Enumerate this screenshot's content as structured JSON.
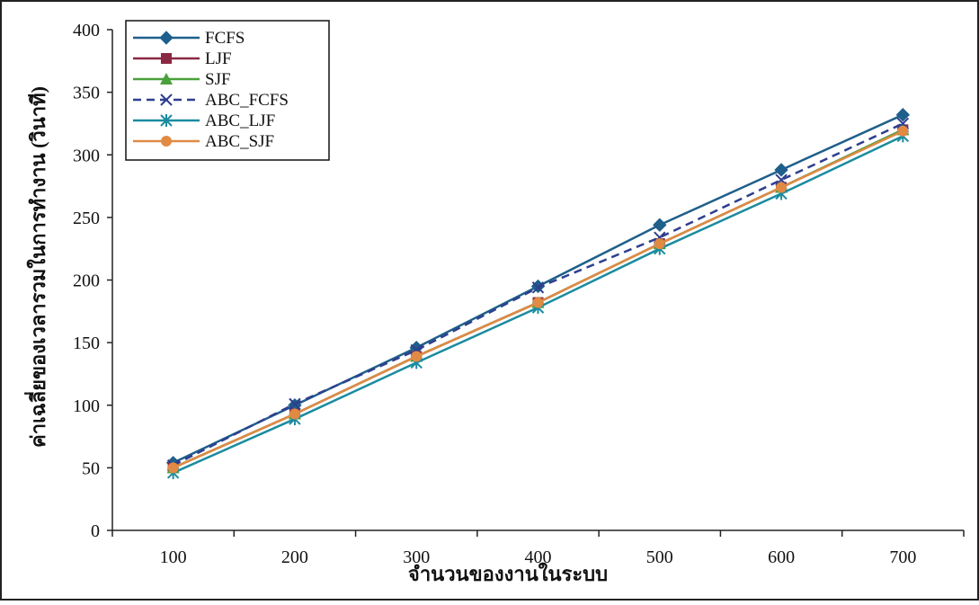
{
  "chart_data": {
    "type": "line",
    "title": "",
    "xlabel": "จำนวนของงานในระบบ",
    "ylabel": "ค่าเฉลี่ยของเวลารวมในการทำงาน (วินาที)",
    "x": [
      100,
      200,
      300,
      400,
      500,
      600,
      700
    ],
    "xtick_labels": [
      "100",
      "200",
      "300",
      "400",
      "500",
      "600",
      "700"
    ],
    "ylim": [
      0,
      400
    ],
    "yticks": [
      0,
      50,
      100,
      150,
      200,
      250,
      300,
      350,
      400
    ],
    "ytick_labels": [
      "0",
      "50",
      "100",
      "150",
      "200",
      "250",
      "300",
      "350",
      "400"
    ],
    "grid": false,
    "legend_position": "top-left",
    "series": [
      {
        "name": "FCFS",
        "values": [
          54,
          100,
          146,
          195,
          244,
          288,
          332
        ],
        "color": "#1f5f8b",
        "marker": "diamond",
        "dash": false
      },
      {
        "name": "LJF",
        "values": [
          50,
          93,
          139,
          182,
          229,
          274,
          320
        ],
        "color": "#8b2942",
        "marker": "square",
        "dash": false
      },
      {
        "name": "SJF",
        "values": [
          50,
          93,
          139,
          182,
          229,
          274,
          320
        ],
        "color": "#4aa03a",
        "marker": "triangle",
        "dash": false
      },
      {
        "name": "ABC_FCFS",
        "values": [
          52,
          101,
          144,
          194,
          234,
          280,
          325
        ],
        "color": "#2e3f8f",
        "marker": "x",
        "dash": true
      },
      {
        "name": "ABC_LJF",
        "values": [
          46,
          89,
          134,
          178,
          225,
          269,
          315
        ],
        "color": "#1a8ba0",
        "marker": "star",
        "dash": false
      },
      {
        "name": "ABC_SJF",
        "values": [
          50,
          93,
          139,
          182,
          229,
          274,
          319
        ],
        "color": "#e08a44",
        "marker": "circle",
        "dash": false
      }
    ]
  }
}
